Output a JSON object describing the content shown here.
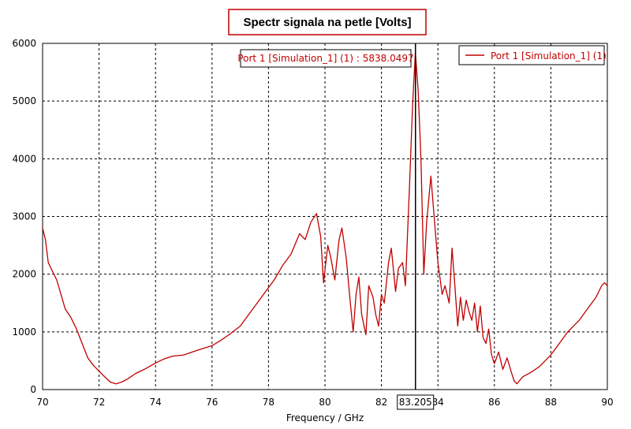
{
  "chart_data": {
    "type": "line",
    "title": "Spectr signala na petle [Volts]",
    "xlabel": "Frequency / GHz",
    "ylabel": "",
    "xlim": [
      70,
      90
    ],
    "ylim": [
      0,
      6000
    ],
    "x_ticks": [
      "70",
      "72",
      "74",
      "76",
      "78",
      "80",
      "82",
      "84",
      "86",
      "88",
      "90"
    ],
    "y_ticks": [
      "0",
      "1000",
      "2000",
      "3000",
      "4000",
      "5000",
      "6000"
    ],
    "grid": true,
    "legend_position": "top-right",
    "line_color": "#c00000",
    "series": [
      {
        "name": "Port 1 [Simulation_1] (1)",
        "x": [
          70.0,
          70.1,
          70.2,
          70.35,
          70.5,
          70.65,
          70.8,
          71.0,
          71.2,
          71.4,
          71.6,
          71.8,
          72.0,
          72.2,
          72.4,
          72.6,
          72.8,
          73.0,
          73.3,
          73.6,
          74.0,
          74.3,
          74.6,
          75.0,
          75.3,
          75.6,
          76.0,
          76.3,
          76.6,
          77.0,
          77.3,
          77.6,
          77.9,
          78.2,
          78.5,
          78.8,
          79.1,
          79.3,
          79.5,
          79.7,
          79.85,
          79.95,
          80.1,
          80.2,
          80.35,
          80.5,
          80.6,
          80.75,
          80.9,
          81.0,
          81.1,
          81.2,
          81.3,
          81.45,
          81.55,
          81.7,
          81.8,
          81.9,
          82.0,
          82.1,
          82.25,
          82.35,
          82.5,
          82.6,
          82.75,
          82.85,
          83.0,
          83.1,
          83.2,
          83.3,
          83.4,
          83.5,
          83.6,
          83.75,
          83.85,
          84.0,
          84.15,
          84.25,
          84.4,
          84.5,
          84.6,
          84.7,
          84.8,
          84.9,
          85.0,
          85.1,
          85.2,
          85.3,
          85.4,
          85.5,
          85.6,
          85.7,
          85.8,
          85.9,
          86.0,
          86.15,
          86.3,
          86.45,
          86.6,
          86.7,
          86.8,
          87.0,
          87.3,
          87.6,
          88.0,
          88.3,
          88.6,
          89.0,
          89.3,
          89.6,
          89.8,
          89.9,
          90.0
        ],
        "y": [
          2800,
          2600,
          2200,
          2050,
          1900,
          1650,
          1400,
          1250,
          1050,
          800,
          550,
          420,
          320,
          220,
          130,
          100,
          130,
          180,
          280,
          350,
          460,
          530,
          580,
          600,
          650,
          700,
          760,
          850,
          950,
          1100,
          1300,
          1500,
          1700,
          1900,
          2150,
          2350,
          2700,
          2600,
          2900,
          3050,
          2650,
          1850,
          2500,
          2300,
          1900,
          2600,
          2800,
          2300,
          1500,
          1000,
          1650,
          1950,
          1300,
          950,
          1800,
          1600,
          1300,
          1100,
          1650,
          1500,
          2200,
          2450,
          1700,
          2100,
          2200,
          1800,
          3600,
          4900,
          5838,
          5200,
          4000,
          2000,
          2900,
          3700,
          3100,
          2200,
          1650,
          1800,
          1500,
          2450,
          1800,
          1100,
          1600,
          1200,
          1550,
          1350,
          1200,
          1500,
          1000,
          1450,
          900,
          800,
          1050,
          600,
          450,
          650,
          350,
          550,
          300,
          150,
          100,
          220,
          300,
          400,
          600,
          800,
          1000,
          1200,
          1400,
          1600,
          1800,
          1850,
          1800
        ]
      }
    ],
    "marker": {
      "x": 83.205,
      "x_label": "83.205",
      "label": "Port 1 [Simulation_1] (1) : 5838.0497"
    }
  }
}
